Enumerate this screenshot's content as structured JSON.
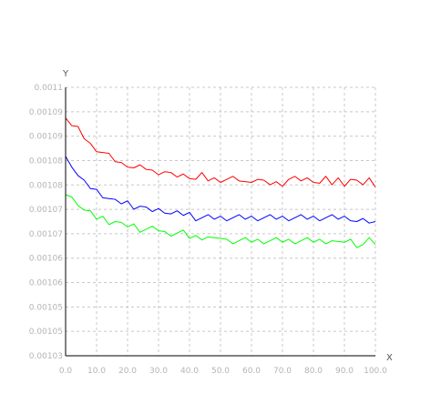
{
  "chart_data": {
    "type": "line",
    "xlabel": "X",
    "ylabel": "Y",
    "xlim": [
      0,
      100
    ],
    "ylim": [
      0.00103,
      0.0011
    ],
    "grid": true,
    "xticks": [
      "0.0",
      "10.0",
      "20.0",
      "30.0",
      "40.0",
      "50.0",
      "60.0",
      "70.0",
      "80.0",
      "90.0",
      "100.0"
    ],
    "yticks": [
      "0.00103",
      "0.00105",
      "0.00105",
      "0.00106",
      "0.00106",
      "0.00107",
      "0.00107",
      "0.00108",
      "0.00108",
      "0.00109",
      "0.00109",
      "0.0011"
    ],
    "ytick_values": [
      0.00103,
      0.001035,
      0.00104,
      0.001045,
      0.00105,
      0.001055,
      0.00106,
      0.001065,
      0.00107,
      0.001075,
      0.00108,
      0.001085
    ],
    "ytick_labels": [
      "0.00103",
      "0.00105",
      "0.00105",
      "0.00106",
      "0.00106",
      "0.00107",
      "0.00107",
      "0.00108",
      "0.00108",
      "0.00109",
      "0.00109",
      "0.0011"
    ],
    "series": [
      {
        "color": "#ff0000",
        "x": [
          0,
          2,
          4,
          6,
          8,
          10,
          12,
          14,
          16,
          18,
          20,
          22,
          24,
          26,
          28,
          30,
          32,
          34,
          36,
          38,
          40,
          42,
          44,
          46,
          48,
          50,
          52,
          54,
          56,
          58,
          60,
          62,
          64,
          66,
          68,
          70,
          72,
          74,
          76,
          78,
          80,
          82,
          84,
          86,
          88,
          90,
          92,
          94,
          96,
          98,
          100
        ],
        "values": [
          0.001092,
          0.00109,
          0.001089,
          0.001087,
          0.001085,
          0.001084,
          0.001083,
          0.001082,
          0.001081,
          0.00108,
          0.00108,
          0.001079,
          0.001079,
          0.001079,
          0.001078,
          0.001078,
          0.001078,
          0.001077,
          0.001077,
          0.001077,
          0.001077,
          0.001076,
          0.001077,
          0.001076,
          0.001076,
          0.001076,
          0.001076,
          0.001076,
          0.001076,
          0.001075,
          0.001076,
          0.001076,
          0.001075,
          0.001075,
          0.001075,
          0.001075,
          0.001076,
          0.001076,
          0.001076,
          0.001076,
          0.001076,
          0.001075,
          0.001076,
          0.001075,
          0.001076,
          0.001075,
          0.001076,
          0.001075,
          0.001075,
          0.001076,
          0.001074
        ]
      },
      {
        "color": "#0000ff",
        "x": [
          0,
          2,
          4,
          6,
          8,
          10,
          12,
          14,
          16,
          18,
          20,
          22,
          24,
          26,
          28,
          30,
          32,
          34,
          36,
          38,
          40,
          42,
          44,
          46,
          48,
          50,
          52,
          54,
          56,
          58,
          60,
          62,
          64,
          66,
          68,
          70,
          72,
          74,
          76,
          78,
          80,
          82,
          84,
          86,
          88,
          90,
          92,
          94,
          96,
          98,
          100
        ],
        "values": [
          0.001082,
          0.00108,
          0.001077,
          0.001075,
          0.001074,
          0.001073,
          0.001072,
          0.001071,
          0.00107,
          0.00107,
          0.00107,
          0.001069,
          0.001069,
          0.001068,
          0.001068,
          0.001068,
          0.001068,
          0.001067,
          0.001067,
          0.001067,
          0.001067,
          0.001066,
          0.001066,
          0.001066,
          0.001066,
          0.001066,
          0.001066,
          0.001066,
          0.001066,
          0.001066,
          0.001066,
          0.001066,
          0.001066,
          0.001066,
          0.001066,
          0.001066,
          0.001066,
          0.001066,
          0.001066,
          0.001066,
          0.001066,
          0.001066,
          0.001066,
          0.001066,
          0.001066,
          0.001066,
          0.001066,
          0.001065,
          0.001065,
          0.001065,
          0.001065
        ]
      },
      {
        "color": "#00ff00",
        "x": [
          0,
          2,
          4,
          6,
          8,
          10,
          12,
          14,
          16,
          18,
          20,
          22,
          24,
          26,
          28,
          30,
          32,
          34,
          36,
          38,
          40,
          42,
          44,
          46,
          48,
          50,
          52,
          54,
          56,
          58,
          60,
          62,
          64,
          66,
          68,
          70,
          72,
          74,
          76,
          78,
          80,
          82,
          84,
          86,
          88,
          90,
          92,
          94,
          96,
          98,
          100
        ],
        "values": [
          0.001072,
          0.001071,
          0.00107,
          0.001068,
          0.001067,
          0.001066,
          0.001066,
          0.001065,
          0.001065,
          0.001064,
          0.001064,
          0.001064,
          0.001063,
          0.001063,
          0.001063,
          0.001063,
          0.001062,
          0.001062,
          0.001062,
          0.001062,
          0.001061,
          0.001061,
          0.001061,
          0.001061,
          0.00106,
          0.001061,
          0.00106,
          0.00106,
          0.00106,
          0.00106,
          0.00106,
          0.00106,
          0.00106,
          0.00106,
          0.00106,
          0.00106,
          0.00106,
          0.00106,
          0.00106,
          0.00106,
          0.00106,
          0.00106,
          0.00106,
          0.00106,
          0.001059,
          0.00106,
          0.00106,
          0.001059,
          0.001059,
          0.00106,
          0.001059
        ]
      }
    ]
  }
}
